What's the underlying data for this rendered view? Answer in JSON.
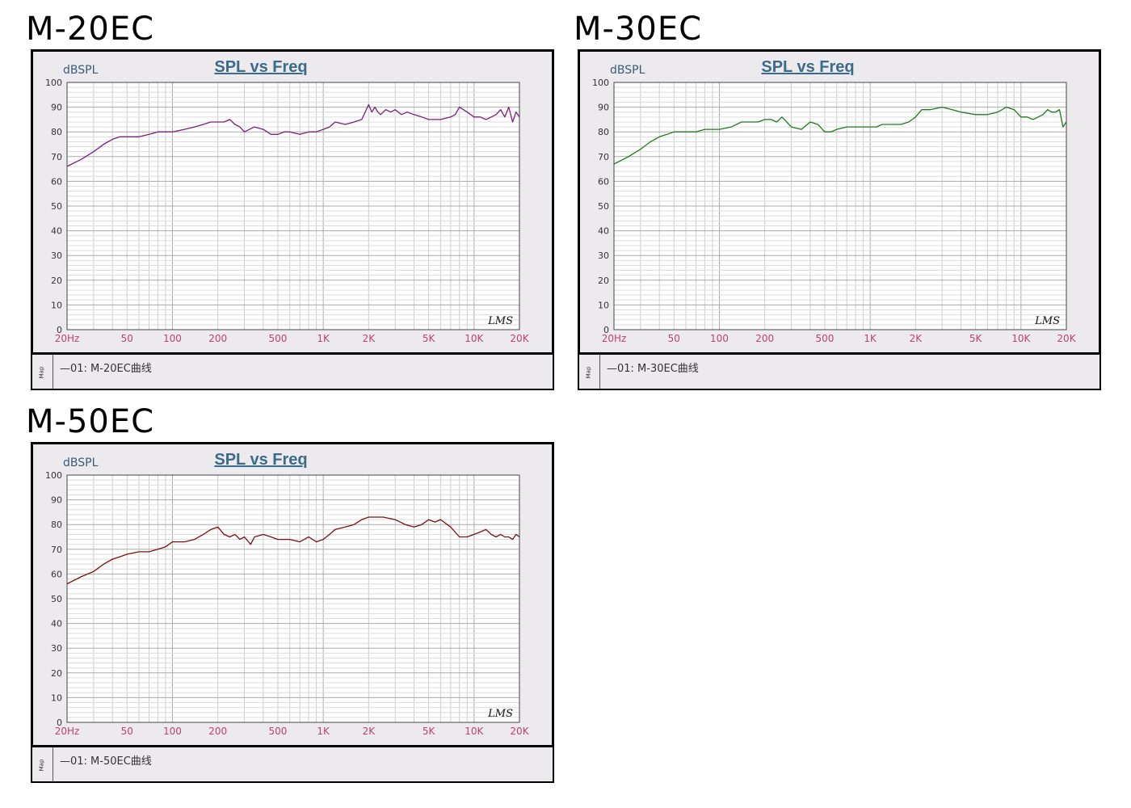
{
  "chart_data": [
    {
      "type": "line",
      "model_label": "M-20EC",
      "title": "SPL vs Freq",
      "ylabel": "dBSPL",
      "watermark": "LMS",
      "x_scale": "log",
      "xlim": [
        20,
        20000
      ],
      "ylim": [
        0,
        100
      ],
      "grid": true,
      "x_ticks": [
        {
          "value": 20,
          "label": "20Hz"
        },
        {
          "value": 50,
          "label": "50"
        },
        {
          "value": 100,
          "label": "100"
        },
        {
          "value": 200,
          "label": "200"
        },
        {
          "value": 500,
          "label": "500"
        },
        {
          "value": 1000,
          "label": "1K"
        },
        {
          "value": 2000,
          "label": "2K"
        },
        {
          "value": 5000,
          "label": "5K"
        },
        {
          "value": 10000,
          "label": "10K"
        },
        {
          "value": 20000,
          "label": "20K"
        }
      ],
      "y_ticks": [
        0,
        10,
        20,
        30,
        40,
        50,
        60,
        70,
        80,
        90,
        100
      ],
      "legend": [
        "—01:  M-20EC曲线"
      ],
      "legend_tab": "Map",
      "series": [
        {
          "color": "#7a1f7a",
          "x": [
            20,
            25,
            30,
            35,
            40,
            45,
            50,
            60,
            70,
            80,
            90,
            100,
            120,
            140,
            160,
            180,
            200,
            220,
            240,
            260,
            280,
            300,
            350,
            400,
            450,
            500,
            550,
            600,
            700,
            800,
            900,
            1000,
            1100,
            1200,
            1400,
            1600,
            1800,
            2000,
            2100,
            2200,
            2300,
            2400,
            2600,
            2800,
            3000,
            3300,
            3600,
            4000,
            4500,
            5000,
            5500,
            6000,
            7000,
            7500,
            8000,
            9000,
            10000,
            11000,
            12000,
            13000,
            14000,
            15000,
            16000,
            17000,
            18000,
            19000,
            20000
          ],
          "y": [
            66,
            69,
            72,
            75,
            77,
            78,
            78,
            78,
            79,
            80,
            80,
            80,
            81,
            82,
            83,
            84,
            84,
            84,
            85,
            83,
            82,
            80,
            82,
            81,
            79,
            79,
            80,
            80,
            79,
            80,
            80,
            81,
            82,
            84,
            83,
            84,
            85,
            91,
            88,
            90,
            88,
            87,
            89,
            88,
            89,
            87,
            88,
            87,
            86,
            85,
            85,
            85,
            86,
            87,
            90,
            88,
            86,
            86,
            85,
            86,
            87,
            89,
            86,
            90,
            84,
            88,
            86
          ]
        }
      ]
    },
    {
      "type": "line",
      "model_label": "M-30EC",
      "title": "SPL vs Freq",
      "ylabel": "dBSPL",
      "watermark": "LMS",
      "x_scale": "log",
      "xlim": [
        20,
        20000
      ],
      "ylim": [
        0,
        100
      ],
      "grid": true,
      "x_ticks": [
        {
          "value": 20,
          "label": "20Hz"
        },
        {
          "value": 50,
          "label": "50"
        },
        {
          "value": 100,
          "label": "100"
        },
        {
          "value": 200,
          "label": "200"
        },
        {
          "value": 500,
          "label": "500"
        },
        {
          "value": 1000,
          "label": "1K"
        },
        {
          "value": 2000,
          "label": "2K"
        },
        {
          "value": 5000,
          "label": "5K"
        },
        {
          "value": 10000,
          "label": "10K"
        },
        {
          "value": 20000,
          "label": "20K"
        }
      ],
      "y_ticks": [
        0,
        10,
        20,
        30,
        40,
        50,
        60,
        70,
        80,
        90,
        100
      ],
      "legend": [
        "—01:  M-30EC曲线"
      ],
      "legend_tab": "Map",
      "series": [
        {
          "color": "#1f7a1f",
          "x": [
            20,
            25,
            30,
            35,
            40,
            45,
            50,
            60,
            70,
            80,
            90,
            100,
            120,
            140,
            160,
            180,
            200,
            220,
            240,
            260,
            280,
            300,
            350,
            400,
            450,
            500,
            550,
            600,
            700,
            800,
            900,
            1000,
            1100,
            1200,
            1400,
            1600,
            1800,
            2000,
            2200,
            2500,
            3000,
            3500,
            4000,
            5000,
            6000,
            7000,
            7500,
            8000,
            9000,
            10000,
            11000,
            12000,
            13000,
            14000,
            15000,
            16000,
            17000,
            18000,
            19000,
            20000
          ],
          "y": [
            67,
            70,
            73,
            76,
            78,
            79,
            80,
            80,
            80,
            81,
            81,
            81,
            82,
            84,
            84,
            84,
            85,
            85,
            84,
            86,
            84,
            82,
            81,
            84,
            83,
            80,
            80,
            81,
            82,
            82,
            82,
            82,
            82,
            83,
            83,
            83,
            84,
            86,
            89,
            89,
            90,
            89,
            88,
            87,
            87,
            88,
            89,
            90,
            89,
            86,
            86,
            85,
            86,
            87,
            89,
            88,
            88,
            89,
            82,
            84
          ]
        }
      ]
    },
    {
      "type": "line",
      "model_label": "M-50EC",
      "title": "SPL vs Freq",
      "ylabel": "dBSPL",
      "watermark": "LMS",
      "x_scale": "log",
      "xlim": [
        20,
        20000
      ],
      "ylim": [
        0,
        100
      ],
      "grid": true,
      "x_ticks": [
        {
          "value": 20,
          "label": "20Hz"
        },
        {
          "value": 50,
          "label": "50"
        },
        {
          "value": 100,
          "label": "100"
        },
        {
          "value": 200,
          "label": "200"
        },
        {
          "value": 500,
          "label": "500"
        },
        {
          "value": 1000,
          "label": "1K"
        },
        {
          "value": 2000,
          "label": "2K"
        },
        {
          "value": 5000,
          "label": "5K"
        },
        {
          "value": 10000,
          "label": "10K"
        },
        {
          "value": 20000,
          "label": "20K"
        }
      ],
      "y_ticks": [
        0,
        10,
        20,
        30,
        40,
        50,
        60,
        70,
        80,
        90,
        100
      ],
      "legend": [
        "—01:  M-50EC曲线"
      ],
      "legend_tab": "Map",
      "series": [
        {
          "color": "#7a1010",
          "x": [
            20,
            25,
            30,
            35,
            40,
            45,
            50,
            60,
            70,
            80,
            90,
            100,
            120,
            140,
            160,
            180,
            200,
            220,
            240,
            260,
            280,
            300,
            330,
            350,
            400,
            450,
            500,
            600,
            700,
            800,
            900,
            1000,
            1100,
            1200,
            1400,
            1600,
            1800,
            2000,
            2200,
            2500,
            3000,
            3500,
            4000,
            4500,
            5000,
            5500,
            6000,
            7000,
            8000,
            9000,
            10000,
            11000,
            12000,
            13000,
            14000,
            15000,
            16000,
            17000,
            18000,
            19000,
            20000
          ],
          "y": [
            56,
            59,
            61,
            64,
            66,
            67,
            68,
            69,
            69,
            70,
            71,
            73,
            73,
            74,
            76,
            78,
            79,
            76,
            75,
            76,
            74,
            75,
            72,
            75,
            76,
            75,
            74,
            74,
            73,
            75,
            73,
            74,
            76,
            78,
            79,
            80,
            82,
            83,
            83,
            83,
            82,
            80,
            79,
            80,
            82,
            81,
            82,
            79,
            75,
            75,
            76,
            77,
            78,
            76,
            75,
            76,
            75,
            75,
            74,
            76,
            75
          ]
        }
      ]
    }
  ]
}
